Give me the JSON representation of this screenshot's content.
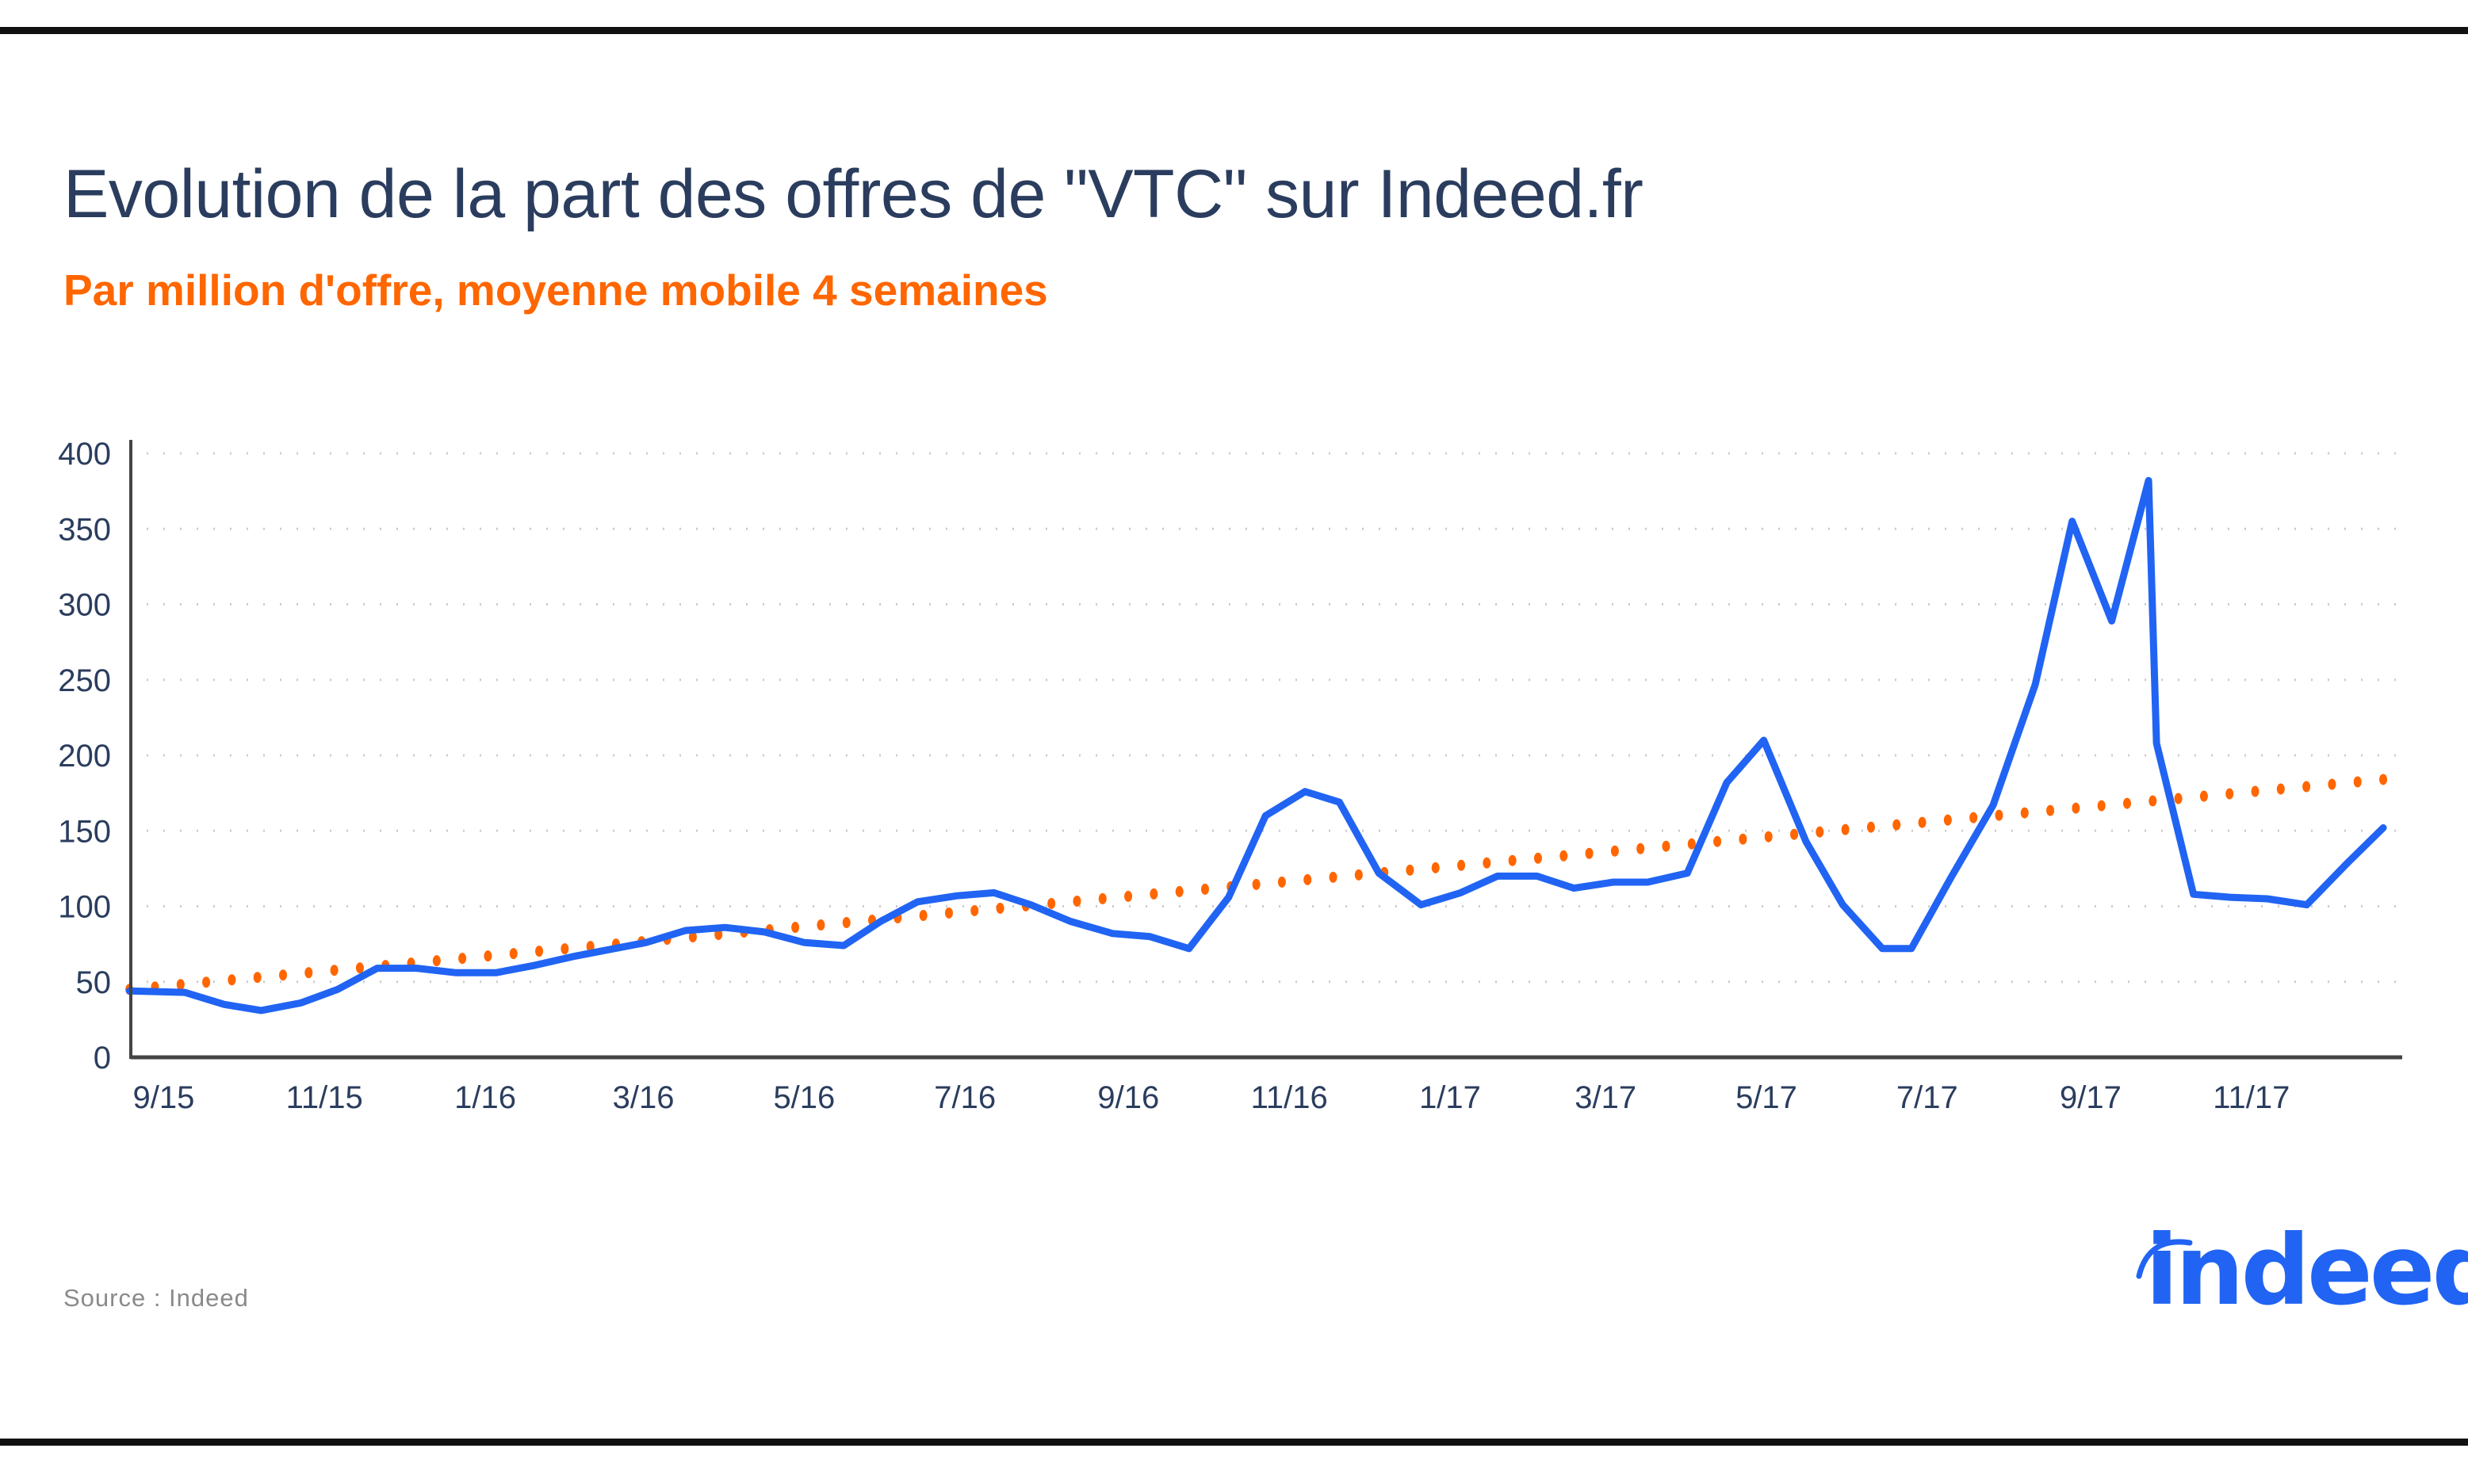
{
  "title": "Evolution de la part des offres de \"VTC\" sur Indeed.fr",
  "subtitle": "Par million d'offre, moyenne mobile 4 semaines",
  "source": "Source : Indeed",
  "logo_text": "indeed",
  "colors": {
    "series": "#2164f3",
    "trend": "#ff6600",
    "title": "#2b3d5e",
    "subtitle": "#ff6600",
    "axis": "#444444",
    "grid": "#cccccc"
  },
  "chart_data": {
    "type": "line",
    "title": "Evolution de la part des offres de \"VTC\" sur Indeed.fr",
    "subtitle": "Par million d'offre, moyenne mobile 4 semaines",
    "xlabel": "",
    "ylabel": "",
    "ylim": [
      0,
      400
    ],
    "yticks": [
      0,
      50,
      100,
      150,
      200,
      250,
      300,
      350,
      400
    ],
    "grid": "horizontal dotted",
    "legend": "none",
    "xtick_labels": [
      {
        "date": "2015-09-01",
        "label": "9/15"
      },
      {
        "date": "2015-11-01",
        "label": "11/15"
      },
      {
        "date": "2016-01-01",
        "label": "1/16"
      },
      {
        "date": "2016-03-01",
        "label": "3/16"
      },
      {
        "date": "2016-05-01",
        "label": "5/16"
      },
      {
        "date": "2016-07-01",
        "label": "7/16"
      },
      {
        "date": "2016-09-01",
        "label": "9/16"
      },
      {
        "date": "2016-11-01",
        "label": "11/16"
      },
      {
        "date": "2017-01-01",
        "label": "1/17"
      },
      {
        "date": "2017-03-01",
        "label": "3/17"
      },
      {
        "date": "2017-05-01",
        "label": "5/17"
      },
      {
        "date": "2017-07-01",
        "label": "7/17"
      },
      {
        "date": "2017-09-01",
        "label": "9/17"
      },
      {
        "date": "2017-11-01",
        "label": "11/17"
      }
    ],
    "series": [
      {
        "style": "solid",
        "x": [
          "2015-08-19",
          "2015-09-09",
          "2015-09-24",
          "2015-10-08",
          "2015-10-23",
          "2015-11-06",
          "2015-11-21",
          "2015-12-06",
          "2015-12-21",
          "2016-01-05",
          "2016-01-20",
          "2016-02-04",
          "2016-02-19",
          "2016-03-02",
          "2016-03-17",
          "2016-04-01",
          "2016-04-16",
          "2016-05-01",
          "2016-05-16",
          "2016-05-30",
          "2016-06-13",
          "2016-06-28",
          "2016-07-12",
          "2016-07-26",
          "2016-08-10",
          "2016-08-26",
          "2016-09-09",
          "2016-09-24",
          "2016-10-09",
          "2016-10-23",
          "2016-11-07",
          "2016-11-20",
          "2016-12-05",
          "2016-12-21",
          "2017-01-05",
          "2017-01-19",
          "2017-02-03",
          "2017-02-17",
          "2017-03-04",
          "2017-03-17",
          "2017-04-01",
          "2017-04-16",
          "2017-04-30",
          "2017-05-16",
          "2017-05-30",
          "2017-06-14",
          "2017-06-25",
          "2017-07-10",
          "2017-07-26",
          "2017-08-11",
          "2017-08-25",
          "2017-09-09",
          "2017-09-23",
          "2017-09-26",
          "2017-10-10",
          "2017-10-24",
          "2017-11-07",
          "2017-11-22",
          "2017-12-07",
          "2017-12-21"
        ],
        "y": [
          44,
          43,
          35,
          31,
          36,
          45,
          59,
          59,
          56,
          56,
          61,
          67,
          72,
          76,
          84,
          86,
          83,
          76,
          74,
          90,
          103,
          107,
          109,
          101,
          90,
          82,
          80,
          72,
          106,
          160,
          176,
          169,
          122,
          101,
          109,
          120,
          120,
          112,
          116,
          116,
          122,
          182,
          210,
          143,
          101,
          72,
          72,
          119,
          167,
          247,
          355,
          289,
          382,
          208,
          108,
          106,
          105,
          101,
          128,
          152
        ]
      },
      {
        "style": "dotted trendline",
        "x": [
          "2015-08-19",
          "2017-12-21"
        ],
        "y": [
          45,
          184
        ]
      }
    ]
  }
}
